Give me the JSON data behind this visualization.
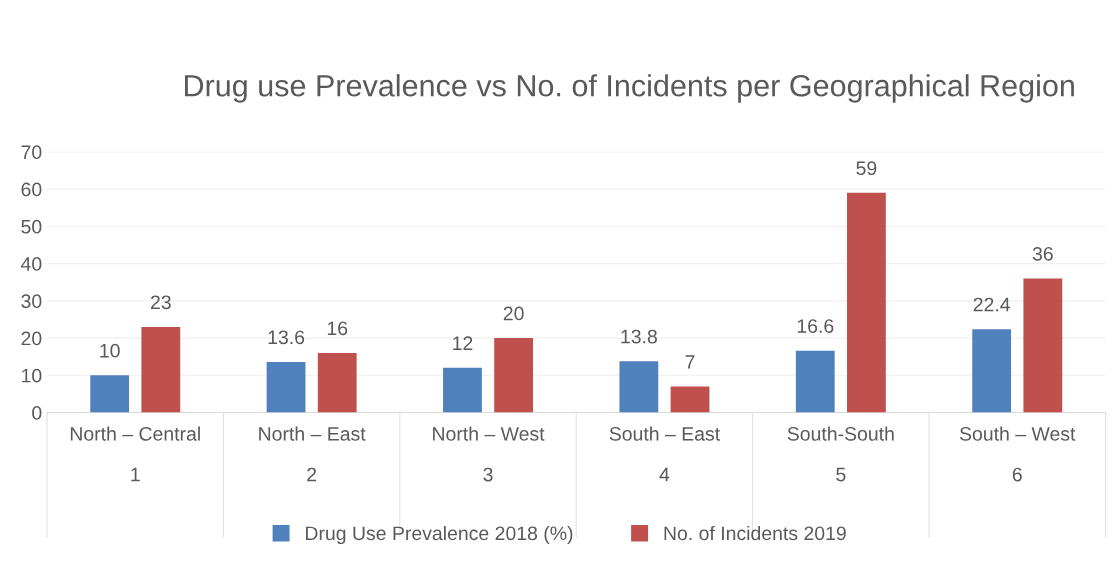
{
  "chart_data": {
    "type": "bar",
    "title": "Drug use Prevalence vs No. of Incidents per Geographical Region",
    "categories": [
      "North – Central\n1",
      "North – East\n2",
      "North – West\n3",
      "South – East\n4",
      "South-South\n5",
      "South – West\n6"
    ],
    "series": [
      {
        "name": "Drug Use Prevalence 2018 (%)",
        "color": "#4f81bd",
        "values": [
          10,
          13.6,
          12,
          13.8,
          16.6,
          22.4
        ]
      },
      {
        "name": "No. of Incidents 2019",
        "color": "#c0504d",
        "values": [
          23,
          16,
          20,
          7,
          59,
          36
        ]
      }
    ],
    "ylim": [
      0,
      70
    ],
    "yticks": [
      0,
      10,
      20,
      30,
      40,
      50,
      60,
      70
    ],
    "grid": "y",
    "legend": "bottom",
    "data_labels": true
  }
}
